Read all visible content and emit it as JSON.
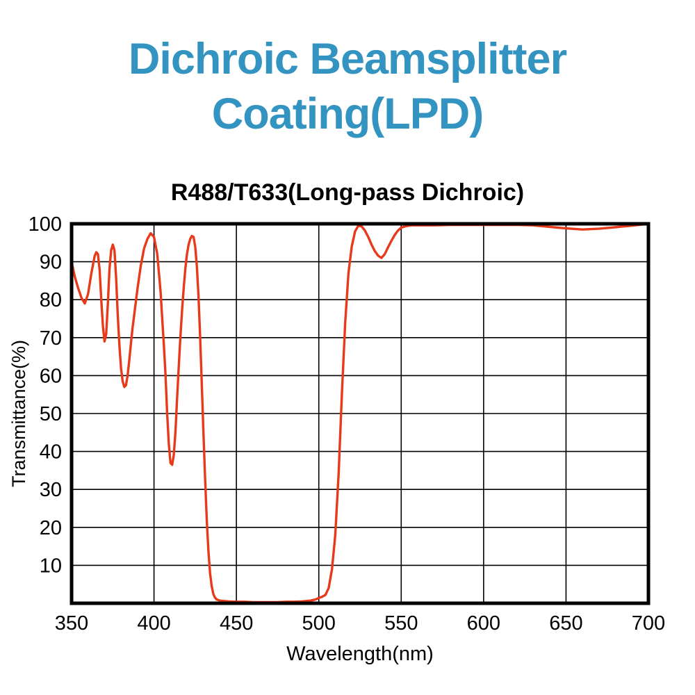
{
  "page": {
    "background": "#ffffff"
  },
  "header": {
    "title_line1": "Dichroic Beamsplitter",
    "title_line2": "Coating(LPD)",
    "title_color": "#3494c1"
  },
  "chart_data": {
    "type": "line",
    "title": "R488/T633(Long-pass Dichroic)",
    "xlabel": "Wavelength(nm)",
    "ylabel": "Transmittance(%)",
    "xlim": [
      350,
      700
    ],
    "ylim": [
      0,
      100
    ],
    "x_ticks": [
      350,
      400,
      450,
      500,
      550,
      600,
      650,
      700
    ],
    "y_ticks": [
      10,
      20,
      30,
      40,
      50,
      60,
      70,
      80,
      90,
      100
    ],
    "grid": true,
    "legend": "none",
    "frame_color": "#000000",
    "grid_color": "#000000",
    "line_color": "#e8391a",
    "series": [
      {
        "name": "Transmittance",
        "points": [
          [
            350,
            90
          ],
          [
            352,
            86
          ],
          [
            354,
            83
          ],
          [
            356,
            80.5
          ],
          [
            358,
            79
          ],
          [
            360,
            81.5
          ],
          [
            362,
            87
          ],
          [
            364,
            91.5
          ],
          [
            365,
            92.5
          ],
          [
            366,
            92
          ],
          [
            367,
            88
          ],
          [
            368,
            80
          ],
          [
            369,
            73
          ],
          [
            370,
            69
          ],
          [
            371,
            71
          ],
          [
            372,
            79
          ],
          [
            373,
            88
          ],
          [
            374,
            93
          ],
          [
            375,
            94.5
          ],
          [
            376,
            93
          ],
          [
            377,
            86
          ],
          [
            378,
            76
          ],
          [
            379,
            68
          ],
          [
            380,
            62
          ],
          [
            381,
            58.5
          ],
          [
            382,
            57
          ],
          [
            383,
            57.5
          ],
          [
            384,
            60
          ],
          [
            385,
            64
          ],
          [
            386,
            68.5
          ],
          [
            387,
            72.5
          ],
          [
            388,
            76
          ],
          [
            390,
            83
          ],
          [
            392,
            89
          ],
          [
            394,
            93.5
          ],
          [
            396,
            96
          ],
          [
            398,
            97.5
          ],
          [
            400,
            96.5
          ],
          [
            402,
            92
          ],
          [
            404,
            82
          ],
          [
            405,
            75
          ],
          [
            406,
            68
          ],
          [
            407,
            60
          ],
          [
            408,
            50
          ],
          [
            409,
            42
          ],
          [
            410,
            37
          ],
          [
            411,
            36.5
          ],
          [
            412,
            39
          ],
          [
            413,
            45
          ],
          [
            414,
            54
          ],
          [
            415,
            62
          ],
          [
            416,
            70
          ],
          [
            417,
            77
          ],
          [
            418,
            83
          ],
          [
            419,
            88
          ],
          [
            420,
            92
          ],
          [
            421,
            94.5
          ],
          [
            422,
            96
          ],
          [
            423,
            96.8
          ],
          [
            424,
            96.5
          ],
          [
            425,
            94
          ],
          [
            426,
            89
          ],
          [
            427,
            81
          ],
          [
            428,
            70
          ],
          [
            429,
            58
          ],
          [
            430,
            45
          ],
          [
            431,
            33
          ],
          [
            432,
            22
          ],
          [
            433,
            14
          ],
          [
            434,
            8
          ],
          [
            435,
            4.5
          ],
          [
            436,
            2.5
          ],
          [
            437,
            1.5
          ],
          [
            438,
            1
          ],
          [
            440,
            0.7
          ],
          [
            445,
            0.5
          ],
          [
            450,
            0.4
          ],
          [
            455,
            0.4
          ],
          [
            460,
            0.3
          ],
          [
            465,
            0.3
          ],
          [
            470,
            0.3
          ],
          [
            475,
            0.3
          ],
          [
            480,
            0.4
          ],
          [
            485,
            0.4
          ],
          [
            490,
            0.5
          ],
          [
            495,
            0.7
          ],
          [
            498,
            1
          ],
          [
            500,
            1.4
          ],
          [
            502,
            1.7
          ],
          [
            504,
            2.2
          ],
          [
            506,
            4
          ],
          [
            508,
            9
          ],
          [
            510,
            18
          ],
          [
            512,
            34
          ],
          [
            514,
            55
          ],
          [
            516,
            74
          ],
          [
            518,
            87
          ],
          [
            520,
            94
          ],
          [
            522,
            98
          ],
          [
            524,
            99.5
          ],
          [
            526,
            99.3
          ],
          [
            528,
            98.2
          ],
          [
            530,
            96.5
          ],
          [
            532,
            94.5
          ],
          [
            534,
            92.8
          ],
          [
            536,
            91.6
          ],
          [
            538,
            91
          ],
          [
            540,
            92
          ],
          [
            542,
            93.8
          ],
          [
            544,
            95.5
          ],
          [
            546,
            97
          ],
          [
            548,
            98.2
          ],
          [
            550,
            99
          ],
          [
            553,
            99.4
          ],
          [
            556,
            99.6
          ],
          [
            560,
            99.6
          ],
          [
            570,
            99.6
          ],
          [
            580,
            99.7
          ],
          [
            590,
            99.7
          ],
          [
            600,
            99.7
          ],
          [
            610,
            99.7
          ],
          [
            620,
            99.7
          ],
          [
            630,
            99.6
          ],
          [
            640,
            99.2
          ],
          [
            650,
            98.8
          ],
          [
            660,
            98.5
          ],
          [
            670,
            98.7
          ],
          [
            680,
            99.1
          ],
          [
            690,
            99.5
          ],
          [
            700,
            100
          ]
        ]
      }
    ]
  }
}
